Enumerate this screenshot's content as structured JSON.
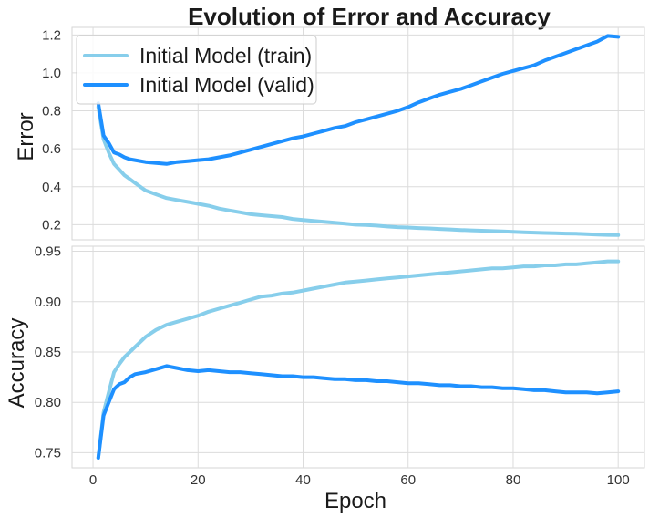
{
  "chart_data": {
    "type": "line",
    "title": "Evolution of Error and Accuracy",
    "xlabel": "Epoch",
    "x_ticks": [
      0,
      20,
      40,
      60,
      80,
      100
    ],
    "colors": {
      "train": "#87ceeb",
      "valid": "#1e90ff"
    },
    "grid": true,
    "panels": [
      {
        "ylabel": "Error",
        "ylim": [
          0.12,
          1.24
        ],
        "y_ticks": [
          "0.2",
          "0.4",
          "0.6",
          "0.8",
          "1.0",
          "1.2"
        ],
        "legend_placement": "top-left",
        "series": [
          {
            "name": "Initial Model (train)",
            "key": "train",
            "points": [
              [
                1,
                0.82
              ],
              [
                2,
                0.65
              ],
              [
                3,
                0.58
              ],
              [
                4,
                0.52
              ],
              [
                5,
                0.49
              ],
              [
                6,
                0.46
              ],
              [
                7,
                0.44
              ],
              [
                8,
                0.42
              ],
              [
                9,
                0.4
              ],
              [
                10,
                0.38
              ],
              [
                12,
                0.36
              ],
              [
                14,
                0.34
              ],
              [
                16,
                0.33
              ],
              [
                18,
                0.32
              ],
              [
                20,
                0.31
              ],
              [
                22,
                0.3
              ],
              [
                24,
                0.285
              ],
              [
                26,
                0.275
              ],
              [
                28,
                0.265
              ],
              [
                30,
                0.255
              ],
              [
                32,
                0.25
              ],
              [
                34,
                0.245
              ],
              [
                36,
                0.24
              ],
              [
                38,
                0.23
              ],
              [
                40,
                0.225
              ],
              [
                42,
                0.22
              ],
              [
                44,
                0.215
              ],
              [
                46,
                0.21
              ],
              [
                48,
                0.205
              ],
              [
                50,
                0.2
              ],
              [
                52,
                0.198
              ],
              [
                54,
                0.195
              ],
              [
                56,
                0.19
              ],
              [
                58,
                0.187
              ],
              [
                60,
                0.185
              ],
              [
                62,
                0.182
              ],
              [
                64,
                0.18
              ],
              [
                66,
                0.177
              ],
              [
                68,
                0.175
              ],
              [
                70,
                0.172
              ],
              [
                72,
                0.17
              ],
              [
                74,
                0.168
              ],
              [
                76,
                0.166
              ],
              [
                78,
                0.164
              ],
              [
                80,
                0.162
              ],
              [
                82,
                0.16
              ],
              [
                84,
                0.158
              ],
              [
                86,
                0.156
              ],
              [
                88,
                0.155
              ],
              [
                90,
                0.153
              ],
              [
                92,
                0.152
              ],
              [
                94,
                0.15
              ],
              [
                96,
                0.148
              ],
              [
                98,
                0.146
              ],
              [
                100,
                0.145
              ]
            ]
          },
          {
            "name": "Initial Model (valid)",
            "key": "valid",
            "points": [
              [
                1,
                0.84
              ],
              [
                2,
                0.67
              ],
              [
                3,
                0.63
              ],
              [
                4,
                0.58
              ],
              [
                5,
                0.57
              ],
              [
                6,
                0.555
              ],
              [
                7,
                0.545
              ],
              [
                8,
                0.54
              ],
              [
                10,
                0.53
              ],
              [
                12,
                0.525
              ],
              [
                14,
                0.52
              ],
              [
                16,
                0.53
              ],
              [
                18,
                0.535
              ],
              [
                20,
                0.54
              ],
              [
                22,
                0.545
              ],
              [
                24,
                0.555
              ],
              [
                26,
                0.565
              ],
              [
                28,
                0.58
              ],
              [
                30,
                0.595
              ],
              [
                32,
                0.61
              ],
              [
                34,
                0.625
              ],
              [
                36,
                0.64
              ],
              [
                38,
                0.655
              ],
              [
                40,
                0.665
              ],
              [
                42,
                0.68
              ],
              [
                44,
                0.695
              ],
              [
                46,
                0.71
              ],
              [
                48,
                0.72
              ],
              [
                50,
                0.74
              ],
              [
                52,
                0.755
              ],
              [
                54,
                0.77
              ],
              [
                56,
                0.785
              ],
              [
                58,
                0.8
              ],
              [
                60,
                0.82
              ],
              [
                62,
                0.845
              ],
              [
                64,
                0.865
              ],
              [
                66,
                0.885
              ],
              [
                68,
                0.9
              ],
              [
                70,
                0.915
              ],
              [
                72,
                0.935
              ],
              [
                74,
                0.955
              ],
              [
                76,
                0.975
              ],
              [
                78,
                0.995
              ],
              [
                80,
                1.01
              ],
              [
                82,
                1.025
              ],
              [
                84,
                1.04
              ],
              [
                86,
                1.065
              ],
              [
                88,
                1.085
              ],
              [
                90,
                1.105
              ],
              [
                92,
                1.125
              ],
              [
                94,
                1.145
              ],
              [
                96,
                1.165
              ],
              [
                98,
                1.195
              ],
              [
                100,
                1.19
              ]
            ]
          }
        ]
      },
      {
        "ylabel": "Accuracy",
        "ylim": [
          0.735,
          0.955
        ],
        "y_ticks": [
          "0.75",
          "0.80",
          "0.85",
          "0.90",
          "0.95"
        ],
        "series": [
          {
            "name": "Initial Model (train)",
            "key": "train",
            "points": [
              [
                1,
                0.745
              ],
              [
                2,
                0.79
              ],
              [
                3,
                0.81
              ],
              [
                4,
                0.83
              ],
              [
                5,
                0.838
              ],
              [
                6,
                0.845
              ],
              [
                7,
                0.85
              ],
              [
                8,
                0.855
              ],
              [
                10,
                0.865
              ],
              [
                12,
                0.872
              ],
              [
                14,
                0.877
              ],
              [
                16,
                0.88
              ],
              [
                18,
                0.883
              ],
              [
                20,
                0.886
              ],
              [
                22,
                0.89
              ],
              [
                24,
                0.893
              ],
              [
                26,
                0.896
              ],
              [
                28,
                0.899
              ],
              [
                30,
                0.902
              ],
              [
                32,
                0.905
              ],
              [
                34,
                0.906
              ],
              [
                36,
                0.908
              ],
              [
                38,
                0.909
              ],
              [
                40,
                0.911
              ],
              [
                42,
                0.913
              ],
              [
                44,
                0.915
              ],
              [
                46,
                0.917
              ],
              [
                48,
                0.919
              ],
              [
                50,
                0.92
              ],
              [
                52,
                0.921
              ],
              [
                54,
                0.922
              ],
              [
                56,
                0.923
              ],
              [
                58,
                0.924
              ],
              [
                60,
                0.925
              ],
              [
                62,
                0.926
              ],
              [
                64,
                0.927
              ],
              [
                66,
                0.928
              ],
              [
                68,
                0.929
              ],
              [
                70,
                0.93
              ],
              [
                72,
                0.931
              ],
              [
                74,
                0.932
              ],
              [
                76,
                0.933
              ],
              [
                78,
                0.933
              ],
              [
                80,
                0.934
              ],
              [
                82,
                0.935
              ],
              [
                84,
                0.935
              ],
              [
                86,
                0.936
              ],
              [
                88,
                0.936
              ],
              [
                90,
                0.937
              ],
              [
                92,
                0.937
              ],
              [
                94,
                0.938
              ],
              [
                96,
                0.939
              ],
              [
                98,
                0.94
              ],
              [
                100,
                0.94
              ]
            ]
          },
          {
            "name": "Initial Model (valid)",
            "key": "valid",
            "points": [
              [
                1,
                0.745
              ],
              [
                2,
                0.787
              ],
              [
                3,
                0.8
              ],
              [
                4,
                0.813
              ],
              [
                5,
                0.818
              ],
              [
                6,
                0.82
              ],
              [
                7,
                0.825
              ],
              [
                8,
                0.828
              ],
              [
                10,
                0.83
              ],
              [
                12,
                0.833
              ],
              [
                14,
                0.836
              ],
              [
                16,
                0.834
              ],
              [
                18,
                0.832
              ],
              [
                20,
                0.831
              ],
              [
                22,
                0.832
              ],
              [
                24,
                0.831
              ],
              [
                26,
                0.83
              ],
              [
                28,
                0.83
              ],
              [
                30,
                0.829
              ],
              [
                32,
                0.828
              ],
              [
                34,
                0.827
              ],
              [
                36,
                0.826
              ],
              [
                38,
                0.826
              ],
              [
                40,
                0.825
              ],
              [
                42,
                0.825
              ],
              [
                44,
                0.824
              ],
              [
                46,
                0.823
              ],
              [
                48,
                0.823
              ],
              [
                50,
                0.822
              ],
              [
                52,
                0.822
              ],
              [
                54,
                0.821
              ],
              [
                56,
                0.821
              ],
              [
                58,
                0.82
              ],
              [
                60,
                0.819
              ],
              [
                62,
                0.819
              ],
              [
                64,
                0.818
              ],
              [
                66,
                0.817
              ],
              [
                68,
                0.817
              ],
              [
                70,
                0.816
              ],
              [
                72,
                0.816
              ],
              [
                74,
                0.815
              ],
              [
                76,
                0.815
              ],
              [
                78,
                0.814
              ],
              [
                80,
                0.814
              ],
              [
                82,
                0.813
              ],
              [
                84,
                0.812
              ],
              [
                86,
                0.812
              ],
              [
                88,
                0.811
              ],
              [
                90,
                0.81
              ],
              [
                92,
                0.81
              ],
              [
                94,
                0.81
              ],
              [
                96,
                0.809
              ],
              [
                98,
                0.81
              ],
              [
                100,
                0.811
              ]
            ]
          }
        ]
      }
    ]
  }
}
